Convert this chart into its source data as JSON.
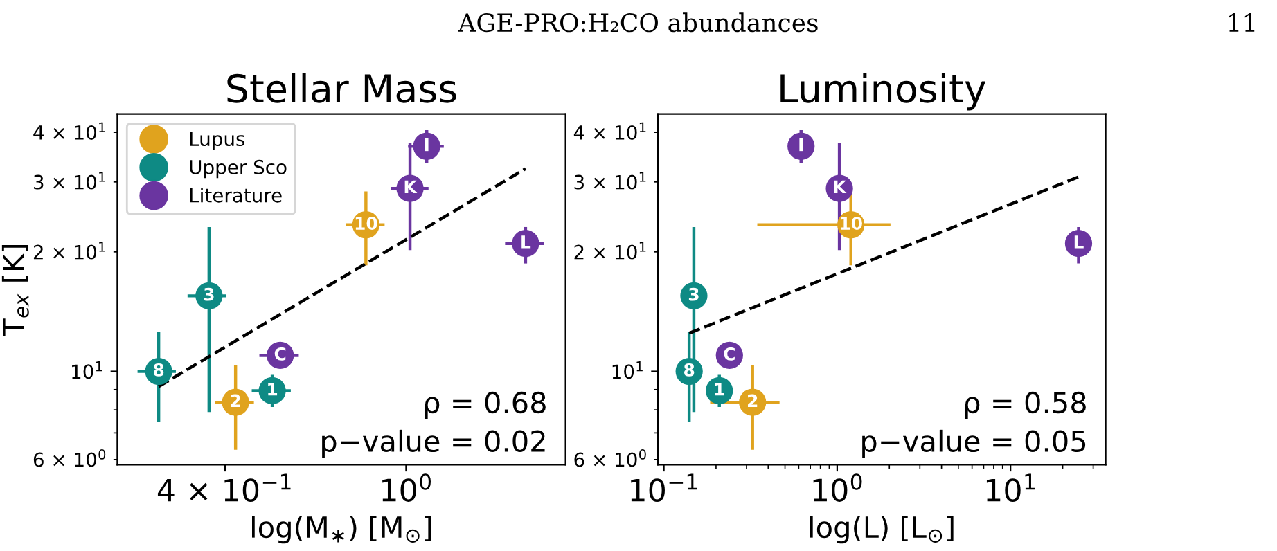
{
  "chart_data": [
    {
      "type": "scatter",
      "title": "Stellar Mass",
      "xlabel": "log(M$_{∗}$) [M$_{⊙}$]",
      "ylabel": "T$_{ex}$ [K]",
      "annotations": [
        "AGE-PRO:H₂CO abundances",
        "11",
        "ρ = 0.68",
        "p−value = 0.02",
        {
          "text": "2",
          "x": 0.422,
          "y": 8.36
        },
        {
          "text": "10",
          "x": 0.816,
          "y": 23.4
        },
        {
          "text": "8",
          "x": 0.286,
          "y": 10
        },
        {
          "text": "3",
          "x": 0.369,
          "y": 15.5
        },
        {
          "text": "1",
          "x": 0.508,
          "y": 8.94
        },
        {
          "text": "C",
          "x": 0.529,
          "y": 10.97
        },
        {
          "text": "K",
          "x": 1.02,
          "y": 28.9
        },
        {
          "text": "I",
          "x": 1.11,
          "y": 36.9
        },
        {
          "text": "L",
          "x": 1.83,
          "y": 21.0
        }
      ],
      "log": "xy",
      "xlim": [
        0.232,
        2.24
      ],
      "ylim": [
        5.82,
        44.5
      ],
      "xticks": [
        {
          "value": 0.4,
          "label": "4 × 10$^{−1}$"
        },
        {
          "value": 1,
          "label": "10$^{0}$"
        }
      ],
      "yticks": [
        {
          "value": 6,
          "label": "6 × 10$^{0}$"
        },
        {
          "value": 7,
          "label": null
        },
        {
          "value": 8,
          "label": null
        },
        {
          "value": 9,
          "label": null
        },
        {
          "value": 10,
          "label": "10$^{1}$"
        },
        {
          "value": 20,
          "label": "2 × 10$^{1}$"
        },
        {
          "value": 30,
          "label": "3 × 10$^{1}$"
        },
        {
          "value": 40,
          "label": "4 × 10$^{1}$"
        }
      ],
      "legend": "top left",
      "marker": "circle",
      "series": [
        {
          "name": "Lupus",
          "color": "#e0a31e",
          "x": [
            0.422,
            0.816
          ],
          "values": [
            8.36,
            23.4
          ],
          "errors": [
            [
              6.35,
              10.35
            ],
            [
              18.5,
              28.4
            ]
          ],
          "xerrors": [
            [
              0.381,
              0.463
            ],
            [
              0.738,
              0.897
            ]
          ]
        },
        {
          "name": "Upper Sco",
          "color": "#0e8a84",
          "x": [
            0.286,
            0.369,
            0.508
          ],
          "values": [
            10,
            15.5,
            8.94
          ],
          "errors": [
            [
              7.45,
              12.55
            ],
            [
              7.9,
              23.1
            ],
            [
              8.13,
              9.8
            ]
          ],
          "xerrors": [
            [
              0.257,
              0.312
            ],
            [
              0.331,
              0.403
            ],
            [
              0.458,
              0.558
            ]
          ]
        },
        {
          "name": "Literature",
          "color": "#6a35a0",
          "x": [
            0.529,
            1.02,
            1.11,
            1.83
          ],
          "values": [
            10.97,
            28.9,
            36.9,
            21.0
          ],
          "errors": [
            null,
            [
              20.2,
              37.6
            ],
            [
              33.5,
              40.5
            ],
            [
              18.7,
              23.1
            ]
          ],
          "xerrors": [
            [
              0.476,
              0.581
            ],
            [
              0.926,
              1.12
            ],
            [
              1.01,
              1.21
            ],
            [
              1.65,
              2.01
            ]
          ]
        },
        {
          "type": "line",
          "color": "#000000",
          "line_style": "dashed",
          "marker": "none",
          "x": [
            0.286,
            1.83
          ],
          "values": [
            9.16,
            32.4
          ]
        }
      ]
    },
    {
      "type": "scatter",
      "title": "Luminosity",
      "xlabel": "log(L) [L$_{⊙}$]",
      "annotations": [
        "ρ = 0.58",
        "p−value = 0.05",
        {
          "text": "2",
          "x": 0.325,
          "y": 8.36
        },
        {
          "text": "10",
          "x": 1.2,
          "y": 23.4
        },
        {
          "text": "8",
          "x": 0.14,
          "y": 10
        },
        {
          "text": "3",
          "x": 0.149,
          "y": 15.5
        },
        {
          "text": "1",
          "x": 0.209,
          "y": 8.94
        },
        {
          "text": "C",
          "x": 0.239,
          "y": 10.97
        },
        {
          "text": "K",
          "x": 1.03,
          "y": 28.9
        },
        {
          "text": "I",
          "x": 0.619,
          "y": 36.9
        },
        {
          "text": "L",
          "x": 24.7,
          "y": 21.0
        }
      ],
      "log": "xy",
      "xlim": [
        0.0924,
        35.4
      ],
      "ylim": [
        5.82,
        44.5
      ],
      "xticks": [
        {
          "value": 0.1,
          "label": "10$^{−1}$"
        },
        {
          "value": 0.2,
          "label": null
        },
        {
          "value": 0.3,
          "label": null
        },
        {
          "value": 0.4,
          "label": null
        },
        {
          "value": 0.5,
          "label": null
        },
        {
          "value": 0.6,
          "label": null
        },
        {
          "value": 0.7,
          "label": null
        },
        {
          "value": 0.8,
          "label": null
        },
        {
          "value": 0.9,
          "label": null
        },
        {
          "value": 1,
          "label": "10$^{0}$"
        },
        {
          "value": 2,
          "label": null
        },
        {
          "value": 3,
          "label": null
        },
        {
          "value": 4,
          "label": null
        },
        {
          "value": 5,
          "label": null
        },
        {
          "value": 6,
          "label": null
        },
        {
          "value": 7,
          "label": null
        },
        {
          "value": 8,
          "label": null
        },
        {
          "value": 9,
          "label": null
        },
        {
          "value": 10,
          "label": "10$^{1}$"
        },
        {
          "value": 20,
          "label": null
        },
        {
          "value": 30,
          "label": null
        }
      ],
      "yticks": [
        {
          "value": 6,
          "label": "6 × 10$^{0}$"
        },
        {
          "value": 7,
          "label": null
        },
        {
          "value": 8,
          "label": null
        },
        {
          "value": 9,
          "label": null
        },
        {
          "value": 10,
          "label": "10$^{1}$"
        },
        {
          "value": 20,
          "label": "2 × 10$^{1}$"
        },
        {
          "value": 30,
          "label": "3 × 10$^{1}$"
        },
        {
          "value": 40,
          "label": "4 × 10$^{1}$"
        }
      ],
      "marker": "circle",
      "series": [
        {
          "color": "#e0a31e",
          "x": [
            0.325,
            1.2
          ],
          "values": [
            8.36,
            23.4
          ],
          "errors": [
            [
              6.35,
              10.35
            ],
            [
              18.5,
              28.4
            ]
          ],
          "xerrors": [
            [
              0.185,
              0.465
            ],
            [
              0.346,
              2.03
            ]
          ]
        },
        {
          "color": "#0e8a84",
          "x": [
            0.14,
            0.149,
            0.209
          ],
          "values": [
            10,
            15.5,
            8.94
          ],
          "errors": [
            [
              7.45,
              12.55
            ],
            [
              7.9,
              23.1
            ],
            [
              8.13,
              9.8
            ]
          ]
        },
        {
          "color": "#6a35a0",
          "x": [
            0.239,
            1.03,
            0.619,
            24.7
          ],
          "values": [
            10.97,
            28.9,
            36.9,
            21.0
          ],
          "errors": [
            null,
            [
              20.2,
              37.6
            ],
            [
              33.5,
              40.5
            ],
            [
              18.7,
              23.1
            ]
          ]
        },
        {
          "type": "line",
          "color": "#000000",
          "line_style": "dashed",
          "marker": "none",
          "x": [
            0.14,
            24.7
          ],
          "values": [
            12.48,
            30.9
          ]
        }
      ]
    }
  ]
}
